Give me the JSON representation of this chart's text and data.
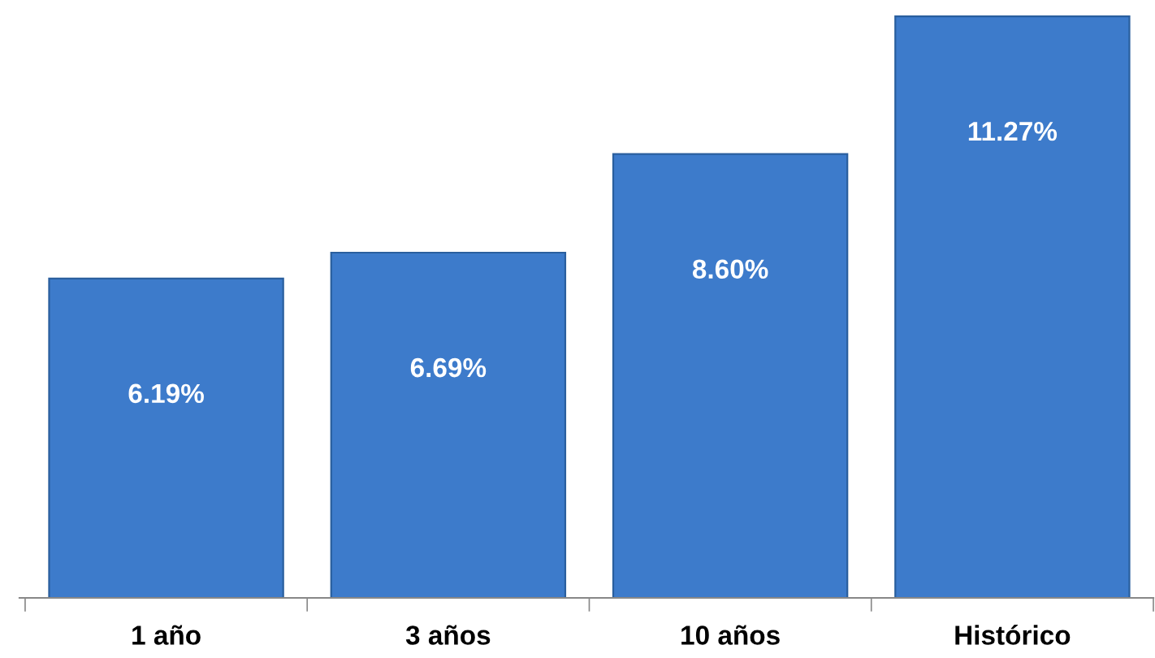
{
  "chart_data": {
    "type": "bar",
    "categories": [
      "1 año",
      "3 años",
      "10 años",
      "Histórico"
    ],
    "values": [
      6.19,
      6.69,
      8.6,
      11.27
    ],
    "value_labels": [
      "6.19%",
      "6.69%",
      "8.60%",
      "11.27%"
    ],
    "color": "#3d7bcb",
    "grid": false,
    "legend": false
  }
}
